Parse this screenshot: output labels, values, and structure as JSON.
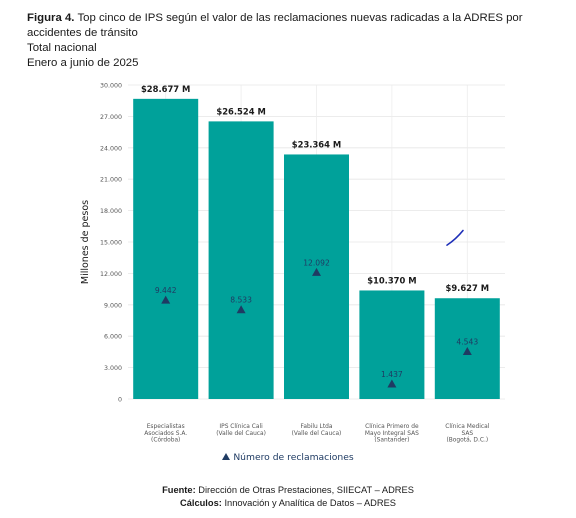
{
  "caption": {
    "figure_label": "Figura 4.",
    "title": "Top cinco de IPS según el valor de las reclamaciones nuevas radicadas a la ADRES por accidentes de tránsito",
    "line2": "Total nacional",
    "line3": "Enero a junio de 2025"
  },
  "legend": {
    "label": "Número de reclamaciones"
  },
  "footer": {
    "source_label": "Fuente:",
    "source_text": "Dirección de Otras Prestaciones, SIIECAT – ADRES",
    "calc_label": "Cálculos:",
    "calc_text": "Innovación y Analítica de Datos – ADRES"
  },
  "chart_data": {
    "type": "bar",
    "ylabel": "Millones de pesos",
    "xlabel": "",
    "ylim": [
      0,
      30000
    ],
    "yticks": [
      0,
      3000,
      6000,
      9000,
      12000,
      15000,
      18000,
      21000,
      24000,
      27000,
      30000
    ],
    "ytick_labels": [
      "0",
      "3.000",
      "6.000",
      "9.000",
      "12.000",
      "15.000",
      "18.000",
      "21.000",
      "24.000",
      "27.000",
      "30.000"
    ],
    "grid": true,
    "legend_position": "bottom",
    "categories": [
      [
        "Especialistas",
        "Asociados S.A.",
        "(Córdoba)"
      ],
      [
        "IPS Clínica Cali",
        "(Valle del Cauca)"
      ],
      [
        "Fabilu Ltda",
        "(Valle del Cauca)"
      ],
      [
        "Clínica Primero de",
        "Mayo Integral SAS",
        "(Santander)"
      ],
      [
        "Clínica Medical",
        "SAS",
        "(Bogotá, D.C.)"
      ]
    ],
    "values": [
      28677,
      26524,
      23364,
      10370,
      9627
    ],
    "value_labels": [
      "$28.677 M",
      "$26.524 M",
      "$23.364 M",
      "$10.370 M",
      "$9.627 M"
    ],
    "series": [
      {
        "values": [
          28677,
          26524,
          23364,
          10370,
          9627
        ],
        "color": "#00a19a"
      },
      {
        "name": "Número de reclamaciones",
        "marker": "triangle",
        "color": "#1f3b63",
        "values": [
          9442,
          8533,
          12092,
          1437,
          4543
        ],
        "labels": [
          "9.442",
          "8.533",
          "12.092",
          "1.437",
          "4.543"
        ]
      }
    ],
    "annotation_stroke": {
      "color": "#1e2fb8",
      "points": [
        [
          14700,
          14700
        ],
        [
          16100,
          16100
        ]
      ]
    }
  }
}
